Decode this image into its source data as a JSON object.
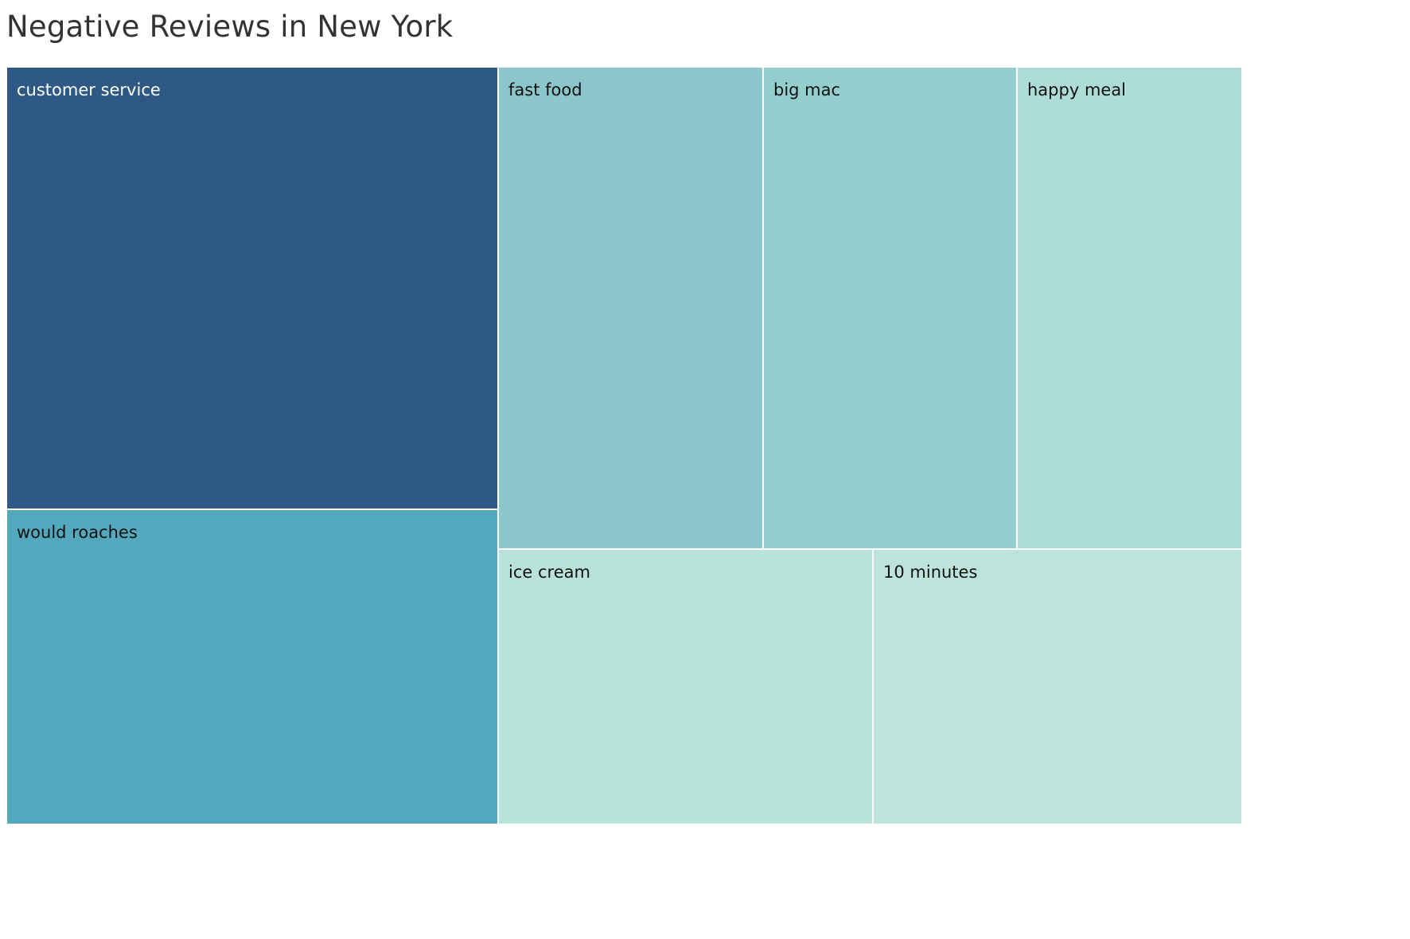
{
  "chart_data": {
    "type": "treemap",
    "title": "Negative Reviews in New York",
    "nodes": [
      {
        "label": "customer service",
        "color": "#2d5984",
        "label_color": "#ffffff"
      },
      {
        "label": "would roaches",
        "color": "#52a8bd",
        "label_color": "#111111"
      },
      {
        "label": "fast food",
        "color": "#8ac6cc",
        "label_color": "#111111"
      },
      {
        "label": "big mac",
        "color": "#93cfcf",
        "label_color": "#111111"
      },
      {
        "label": "happy meal",
        "color": "#aedcd6",
        "label_color": "#111111"
      },
      {
        "label": "ice cream",
        "color": "#b9e3d9",
        "label_color": "#111111"
      },
      {
        "label": "10 minutes",
        "color": "#bce4da",
        "label_color": "#111111"
      }
    ]
  }
}
